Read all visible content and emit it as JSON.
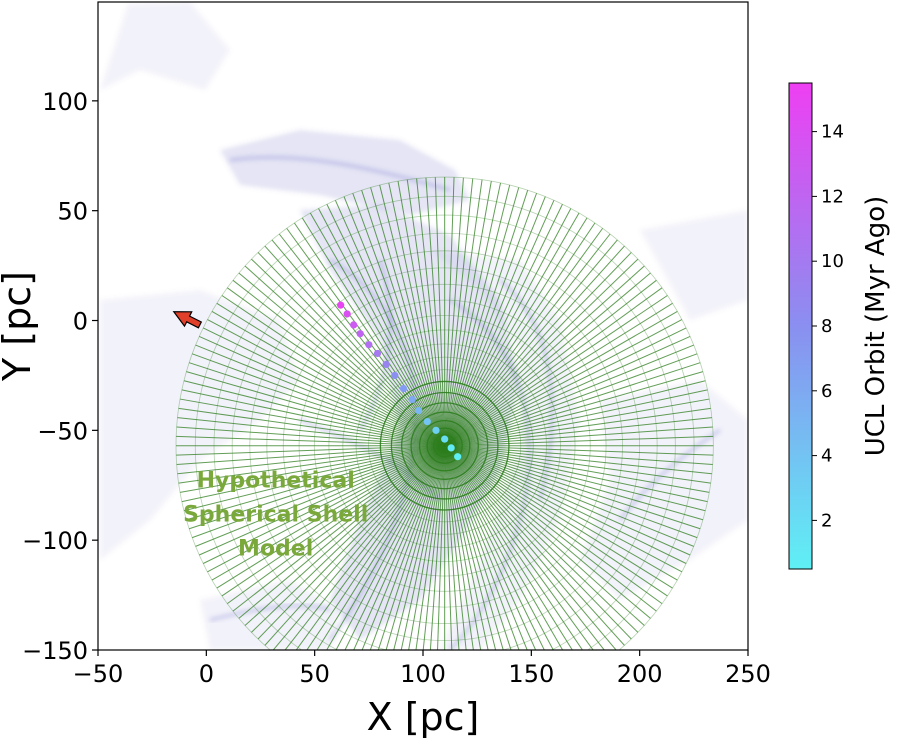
{
  "chart_data": {
    "type": "scatter",
    "title": "",
    "xlabel": "X [pc]",
    "ylabel": "Y [pc]",
    "xlim": [
      -50,
      250
    ],
    "ylim": [
      -150,
      145
    ],
    "xticks": [
      -50,
      0,
      50,
      100,
      150,
      200,
      250
    ],
    "yticks": [
      -150,
      -100,
      -50,
      0,
      50,
      100
    ],
    "xtick_labels": [
      "−50",
      "0",
      "50",
      "100",
      "150",
      "200",
      "250"
    ],
    "ytick_labels": [
      "−150",
      "−100",
      "−50",
      "0",
      "50",
      "100"
    ],
    "grid": false,
    "shell": {
      "center": [
        110,
        -57
      ],
      "radius": 124,
      "color": "#2e7d1e",
      "annotation": "Hypothetical\nSpherical Shell\nModel",
      "annotation_color": "#7aa83a"
    },
    "orbit": {
      "x": [
        62,
        65,
        68,
        71,
        75,
        79,
        83,
        87,
        91,
        95,
        98,
        102,
        106,
        110,
        113,
        116
      ],
      "y": [
        7,
        3,
        -2,
        -6,
        -11,
        -15,
        -20,
        -25,
        -31,
        -36,
        -41,
        -46,
        -50,
        -54,
        -58,
        -62
      ],
      "age_myr": [
        15,
        14,
        13,
        12,
        11,
        10,
        9,
        8,
        7,
        6,
        5,
        4,
        3,
        2,
        1,
        0.5
      ]
    },
    "arrow": {
      "from": [
        -3,
        -2
      ],
      "to": [
        -15,
        4
      ],
      "color": "#e0402a"
    },
    "colorbar": {
      "label": "UCL Orbit (Myr Ago)",
      "range": [
        0.5,
        15.5
      ],
      "ticks": [
        2,
        4,
        6,
        8,
        10,
        12,
        14
      ],
      "tick_labels": [
        "2",
        "4",
        "6",
        "8",
        "10",
        "12",
        "14"
      ],
      "color_low": "#5ff0f5",
      "color_high": "#ee3ff2"
    },
    "background_color": "#6b6bc8"
  }
}
